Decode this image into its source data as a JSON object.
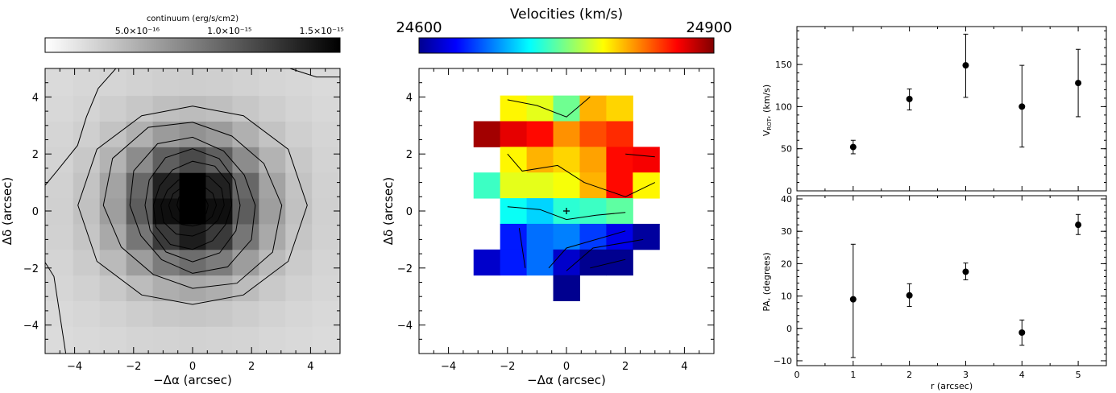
{
  "chart_data": [
    {
      "type": "heatmap",
      "colorbar_title": "continuum (erg/s/cm2)",
      "colorbar_ticks": [
        {
          "value": 5e-16,
          "label": "5.0×10⁻¹⁶"
        },
        {
          "value": 1e-15,
          "label": "1.0×10⁻¹⁵"
        },
        {
          "value": 1.5e-15,
          "label": "1.5×10⁻¹⁵"
        }
      ],
      "colorbar_range": [
        0,
        1.6e-15
      ],
      "colormap": "gray_inverted",
      "xlabel": "−Δα (arcsec)",
      "ylabel": "Δδ (arcsec)",
      "xlim": [
        -5,
        5
      ],
      "ylim": [
        -5,
        5
      ],
      "xticks": [
        "−4",
        "−2",
        "0",
        "2",
        "4"
      ],
      "yticks": [
        "−4",
        "−2",
        "0",
        "2",
        "4"
      ],
      "pixel_size_arcsec": 0.9,
      "model": {
        "center": [
          0,
          0.2
        ],
        "peak": 1.6e-15,
        "sigma_core": 1.0,
        "background": 1.5e-16
      },
      "contour_levels": [
        1e-16,
        3e-16,
        6e-16,
        8e-16,
        1e-15,
        1.2e-15,
        1.4e-15,
        1.55e-15
      ]
    },
    {
      "type": "heatmap",
      "title": "Velocities (km/s)",
      "colorbar_min_label": "24600",
      "colorbar_max_label": "24900",
      "colorbar_range": [
        24600,
        24900
      ],
      "colormap": "jet",
      "xlabel": "−Δα (arcsec)",
      "ylabel": "Δδ (arcsec)",
      "xlim": [
        -5,
        5
      ],
      "ylim": [
        -5,
        5
      ],
      "xticks": [
        "−4",
        "−2",
        "0",
        "2",
        "4"
      ],
      "yticks": [
        "−4",
        "−2",
        "0",
        "2",
        "4"
      ],
      "pixel_size_arcsec": 0.9,
      "cells": [
        {
          "row": 4,
          "cols": [
            -2,
            -1,
            0,
            1,
            2
          ],
          "values": [
            24790,
            24780,
            24745,
            24810,
            24800
          ]
        },
        {
          "row": 3,
          "cols": [
            -3,
            -2,
            -1,
            0,
            1,
            2
          ],
          "values": [
            24890,
            24870,
            24860,
            24820,
            24840,
            24850
          ]
        },
        {
          "row": 2,
          "cols": [
            -2,
            -1,
            0,
            1,
            2,
            3
          ],
          "values": [
            24790,
            24810,
            24800,
            24815,
            24860,
            24865
          ]
        },
        {
          "row": 1,
          "cols": [
            -3,
            -2,
            -1,
            0,
            1,
            2,
            3
          ],
          "values": [
            24730,
            24780,
            24780,
            24785,
            24810,
            24860,
            24790
          ]
        },
        {
          "row": 0,
          "cols": [
            -2,
            -1,
            0,
            1,
            2
          ],
          "values": [
            24715,
            24700,
            24725,
            24730,
            24740
          ]
        },
        {
          "row": -1,
          "cols": [
            -2,
            -1,
            0,
            1,
            2,
            3
          ],
          "values": [
            24645,
            24670,
            24675,
            24655,
            24630,
            24605
          ]
        },
        {
          "row": -2,
          "cols": [
            -3,
            -2,
            -1,
            0,
            1,
            2
          ],
          "values": [
            24620,
            24645,
            24670,
            24620,
            24570,
            24575
          ]
        },
        {
          "row": -3,
          "cols": [
            0
          ],
          "values": [
            24600
          ]
        }
      ],
      "marker": {
        "x": 0,
        "y": 0,
        "symbol": "+"
      }
    },
    {
      "type": "scatter",
      "ylabel": "V ROT,  (km/s)",
      "ylabel_main": "V",
      "ylabel_sub": "ROT",
      "ylabel_rest": ",  (km/s)",
      "xlim": [
        0,
        5.5
      ],
      "ylim": [
        0,
        195
      ],
      "xticks": [
        "0",
        "1",
        "2",
        "3",
        "4",
        "5"
      ],
      "yticks": [
        "0",
        "50",
        "100",
        "150"
      ],
      "ytick_values": [
        0,
        50,
        100,
        150
      ],
      "x": [
        1,
        2,
        3,
        4,
        5
      ],
      "y": [
        52,
        109,
        149,
        100,
        128
      ],
      "yerr_low": [
        44,
        96,
        111,
        52,
        88
      ],
      "yerr_high": [
        60,
        121,
        186,
        149,
        168
      ]
    },
    {
      "type": "scatter",
      "xlabel": "r (arcsec)",
      "ylabel": "PA,  (degrees)",
      "xlim": [
        0,
        5.5
      ],
      "ylim": [
        -11.5,
        41
      ],
      "xticks": [
        "0",
        "1",
        "2",
        "3",
        "4",
        "5"
      ],
      "yticks": [
        "−10",
        "0",
        "10",
        "20",
        "30",
        "40"
      ],
      "ytick_values": [
        -10,
        0,
        10,
        20,
        30,
        40
      ],
      "x": [
        1,
        2,
        3,
        4,
        5
      ],
      "y": [
        9,
        10.2,
        17.5,
        -1.3,
        32
      ],
      "yerr_low": [
        -9,
        6.8,
        15,
        -5.2,
        29
      ],
      "yerr_high": [
        26,
        13.8,
        20.2,
        2.6,
        35.2
      ]
    }
  ]
}
